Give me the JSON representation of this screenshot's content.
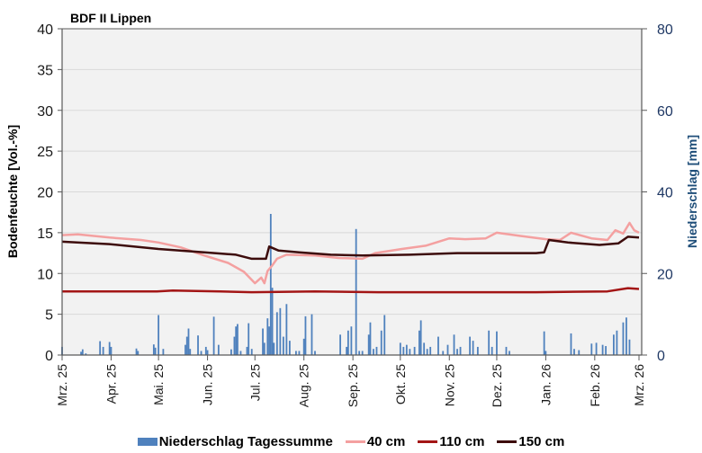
{
  "chart_data": {
    "type": "line+bar",
    "title": "BDF II Lippen",
    "xlabel": "",
    "ylabel": "Bodenfeuchte [Vol.-%]",
    "ylabel_right": "Niederschlag [mm]",
    "ylim": [
      0,
      40
    ],
    "ylim_right": [
      0,
      80
    ],
    "yticks": [
      "0",
      "5",
      "10",
      "15",
      "20",
      "25",
      "30",
      "35",
      "40"
    ],
    "yticks_right": [
      "0",
      "20",
      "40",
      "60",
      "80"
    ],
    "grid": true,
    "legend_position": "bottom",
    "x_tick_labels": [
      "Mrz. 25",
      "Apr. 25",
      "Mai. 25",
      "Jun. 25",
      "Jul. 25",
      "Aug. 25",
      "Sep. 25",
      "Okt. 25",
      "Nov. 25",
      "Dez. 25",
      "Jan. 26",
      "Feb. 26",
      "Mrz. 26"
    ],
    "x_tick_days": [
      0,
      31,
      61,
      92,
      122,
      153,
      184,
      214,
      245,
      275,
      306,
      337,
      365
    ],
    "series": [
      {
        "name": "40 cm",
        "type": "line",
        "axis": "left",
        "color": "#f4a0a0",
        "points": [
          [
            0,
            14.7
          ],
          [
            10,
            14.8
          ],
          [
            30,
            14.4
          ],
          [
            50,
            14.1
          ],
          [
            61,
            13.8
          ],
          [
            75,
            13.2
          ],
          [
            90,
            12.2
          ],
          [
            105,
            11.3
          ],
          [
            115,
            10.2
          ],
          [
            122,
            8.8
          ],
          [
            126,
            9.5
          ],
          [
            128,
            8.8
          ],
          [
            130,
            10.3
          ],
          [
            133,
            11.0
          ],
          [
            136,
            11.8
          ],
          [
            142,
            12.3
          ],
          [
            160,
            12.2
          ],
          [
            175,
            11.9
          ],
          [
            190,
            11.8
          ],
          [
            198,
            12.5
          ],
          [
            215,
            13.0
          ],
          [
            230,
            13.4
          ],
          [
            240,
            14.0
          ],
          [
            245,
            14.3
          ],
          [
            255,
            14.2
          ],
          [
            268,
            14.3
          ],
          [
            275,
            15.0
          ],
          [
            290,
            14.6
          ],
          [
            306,
            14.2
          ],
          [
            315,
            14.1
          ],
          [
            322,
            15.0
          ],
          [
            335,
            14.3
          ],
          [
            345,
            14.1
          ],
          [
            350,
            15.3
          ],
          [
            355,
            14.9
          ],
          [
            359,
            16.2
          ],
          [
            362,
            15.3
          ],
          [
            365,
            15.0
          ]
        ]
      },
      {
        "name": "110 cm",
        "type": "line",
        "axis": "left",
        "color": "#a31515",
        "points": [
          [
            0,
            7.8
          ],
          [
            60,
            7.8
          ],
          [
            70,
            7.9
          ],
          [
            100,
            7.8
          ],
          [
            120,
            7.7
          ],
          [
            160,
            7.8
          ],
          [
            200,
            7.7
          ],
          [
            250,
            7.7
          ],
          [
            300,
            7.7
          ],
          [
            345,
            7.8
          ],
          [
            358,
            8.2
          ],
          [
            365,
            8.1
          ]
        ]
      },
      {
        "name": "150 cm",
        "type": "line",
        "axis": "left",
        "color": "#3d0c0c",
        "points": [
          [
            0,
            13.9
          ],
          [
            30,
            13.6
          ],
          [
            61,
            13.0
          ],
          [
            90,
            12.6
          ],
          [
            110,
            12.3
          ],
          [
            120,
            11.8
          ],
          [
            129,
            11.8
          ],
          [
            131,
            13.3
          ],
          [
            137,
            12.8
          ],
          [
            150,
            12.6
          ],
          [
            170,
            12.3
          ],
          [
            190,
            12.2
          ],
          [
            220,
            12.3
          ],
          [
            250,
            12.5
          ],
          [
            300,
            12.5
          ],
          [
            305,
            12.6
          ],
          [
            308,
            14.1
          ],
          [
            320,
            13.8
          ],
          [
            340,
            13.5
          ],
          [
            352,
            13.7
          ],
          [
            358,
            14.5
          ],
          [
            365,
            14.4
          ]
        ]
      },
      {
        "name": "Niederschlag Tagessumme",
        "type": "bar",
        "axis": "right",
        "color": "#4f81bd",
        "points": [
          [
            0,
            2.0
          ],
          [
            12,
            0.8
          ],
          [
            13,
            1.4
          ],
          [
            15,
            0.4
          ],
          [
            24,
            3.4
          ],
          [
            26,
            2.0
          ],
          [
            30,
            3.2
          ],
          [
            31,
            2.0
          ],
          [
            47,
            1.6
          ],
          [
            48,
            1.0
          ],
          [
            58,
            2.6
          ],
          [
            59,
            1.8
          ],
          [
            61,
            9.8
          ],
          [
            64,
            1.5
          ],
          [
            78,
            2.5
          ],
          [
            79,
            4.5
          ],
          [
            80,
            6.5
          ],
          [
            81,
            1.5
          ],
          [
            86,
            4.8
          ],
          [
            88,
            1.0
          ],
          [
            91,
            2.0
          ],
          [
            92,
            1.2
          ],
          [
            96,
            9.4
          ],
          [
            99,
            2.5
          ],
          [
            107,
            1.4
          ],
          [
            109,
            4.5
          ],
          [
            110,
            7.0
          ],
          [
            111,
            7.6
          ],
          [
            113,
            1.0
          ],
          [
            117,
            2.0
          ],
          [
            118,
            7.8
          ],
          [
            120,
            1.5
          ],
          [
            127,
            6.5
          ],
          [
            128,
            3.0
          ],
          [
            130,
            9.0
          ],
          [
            131,
            7.0
          ],
          [
            132,
            34.6
          ],
          [
            133,
            16.5
          ],
          [
            134,
            3.0
          ],
          [
            136,
            10.5
          ],
          [
            138,
            11.5
          ],
          [
            140,
            4.5
          ],
          [
            142,
            12.5
          ],
          [
            144,
            3.5
          ],
          [
            148,
            1.0
          ],
          [
            150,
            1.0
          ],
          [
            153,
            4.0
          ],
          [
            154,
            9.5
          ],
          [
            158,
            10.0
          ],
          [
            160,
            1.0
          ],
          [
            176,
            5.0
          ],
          [
            180,
            2.0
          ],
          [
            181,
            6.0
          ],
          [
            183,
            7.0
          ],
          [
            186,
            30.9
          ],
          [
            188,
            1.0
          ],
          [
            190,
            1.0
          ],
          [
            194,
            5.0
          ],
          [
            195,
            8.0
          ],
          [
            197,
            1.5
          ],
          [
            199,
            2.0
          ],
          [
            202,
            6.0
          ],
          [
            204,
            9.8
          ],
          [
            214,
            3.0
          ],
          [
            216,
            2.0
          ],
          [
            218,
            2.5
          ],
          [
            220,
            1.5
          ],
          [
            223,
            2.0
          ],
          [
            226,
            6.0
          ],
          [
            227,
            8.5
          ],
          [
            229,
            3.0
          ],
          [
            231,
            1.5
          ],
          [
            233,
            2.0
          ],
          [
            238,
            4.5
          ],
          [
            241,
            1.0
          ],
          [
            244,
            2.5
          ],
          [
            248,
            5.0
          ],
          [
            250,
            1.5
          ],
          [
            252,
            2.0
          ],
          [
            258,
            4.5
          ],
          [
            260,
            3.5
          ],
          [
            263,
            2.0
          ],
          [
            270,
            6.0
          ],
          [
            272,
            2.0
          ],
          [
            275,
            5.8
          ],
          [
            281,
            2.0
          ],
          [
            283,
            1.0
          ],
          [
            305,
            5.8
          ],
          [
            306,
            1.0
          ],
          [
            322,
            5.3
          ],
          [
            324,
            1.5
          ],
          [
            327,
            1.2
          ],
          [
            335,
            2.8
          ],
          [
            338,
            3.0
          ],
          [
            342,
            2.5
          ],
          [
            344,
            2.2
          ],
          [
            349,
            5.0
          ],
          [
            351,
            6.0
          ],
          [
            355,
            8.0
          ],
          [
            357,
            9.2
          ],
          [
            359,
            3.8
          ]
        ]
      }
    ]
  },
  "legend": {
    "items": [
      {
        "label": "Niederschlag Tagessumme",
        "color": "#4f81bd",
        "kind": "bar"
      },
      {
        "label": "40 cm",
        "color": "#f4a0a0",
        "kind": "line"
      },
      {
        "label": "110 cm",
        "color": "#a31515",
        "kind": "line"
      },
      {
        "label": "150 cm",
        "color": "#3d0c0c",
        "kind": "line"
      }
    ]
  },
  "style": {
    "plot_bg": "#f2f2f2",
    "grid_color": "#d9d9d9",
    "axis_color": "#595959",
    "right_axis_text_color": "#1f3864"
  }
}
